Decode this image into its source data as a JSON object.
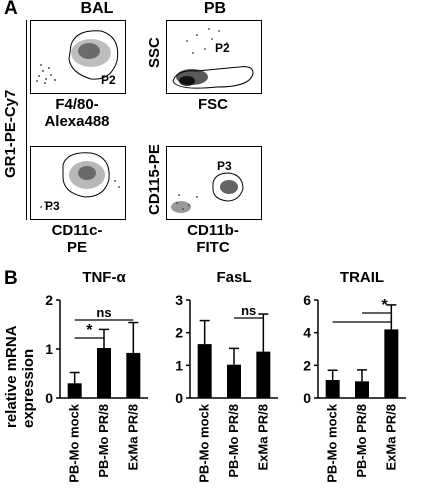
{
  "panel_a": {
    "letter": "A",
    "col_bal": "BAL",
    "col_pb": "PB",
    "y_axis_left": "GR1-PE-Cy7",
    "plots": [
      {
        "x_label_1": "F4/80-",
        "x_label_2": "Alexa488",
        "gate": "P2"
      },
      {
        "y_label": "SSC",
        "x_label_1": "FSC",
        "gate": "P2"
      },
      {
        "x_label_1": "CD11c-",
        "x_label_2": "PE",
        "gate": "P3"
      },
      {
        "y_label": "CD115-PE",
        "x_label_1": "CD11b-",
        "x_label_2": "FITC",
        "gate": "P3"
      }
    ]
  },
  "panel_b": {
    "letter": "B",
    "y_axis_label_1": "relative mRNA",
    "y_axis_label_2": "expression"
  },
  "chart_data": [
    {
      "type": "bar",
      "title": "TNF-α",
      "categories": [
        "PB-Mo mock",
        "PB-Mo PR/8",
        "ExMa PR/8"
      ],
      "values": [
        0.3,
        1.02,
        0.92
      ],
      "errors": [
        0.22,
        0.38,
        0.62
      ],
      "ylim": [
        0,
        2
      ],
      "yticks": [
        "0",
        "1",
        "2"
      ],
      "yticks_values": [
        0,
        1,
        2
      ],
      "annotations": [
        {
          "from": 0,
          "to": 2,
          "label": "ns"
        },
        {
          "from": 0,
          "to": 1,
          "label": "*"
        }
      ]
    },
    {
      "type": "bar",
      "title": "FasL",
      "categories": [
        "PB-Mo mock",
        "PB-Mo PR/8",
        "ExMa PR/8"
      ],
      "values": [
        1.65,
        1.02,
        1.42
      ],
      "errors": [
        0.72,
        0.5,
        1.15
      ],
      "ylim": [
        0,
        3
      ],
      "yticks": [
        "0",
        "1",
        "2",
        "3"
      ],
      "yticks_values": [
        0,
        1,
        2,
        3
      ],
      "annotations": [
        {
          "from": 1,
          "to": 2,
          "label": "ns"
        }
      ]
    },
    {
      "type": "bar",
      "title": "TRAIL",
      "categories": [
        "PB-Mo mock",
        "PB-Mo PR/8",
        "ExMa PR/8"
      ],
      "values": [
        1.1,
        1.02,
        4.2
      ],
      "errors": [
        0.6,
        0.7,
        1.5
      ],
      "ylim": [
        0,
        6
      ],
      "yticks": [
        "0",
        "2",
        "4",
        "6"
      ],
      "yticks_values": [
        0,
        2,
        4,
        6
      ],
      "annotations": [
        {
          "from": 0,
          "to": 2,
          "label": ""
        },
        {
          "from": 1,
          "to": 2,
          "label": "*"
        }
      ]
    }
  ]
}
